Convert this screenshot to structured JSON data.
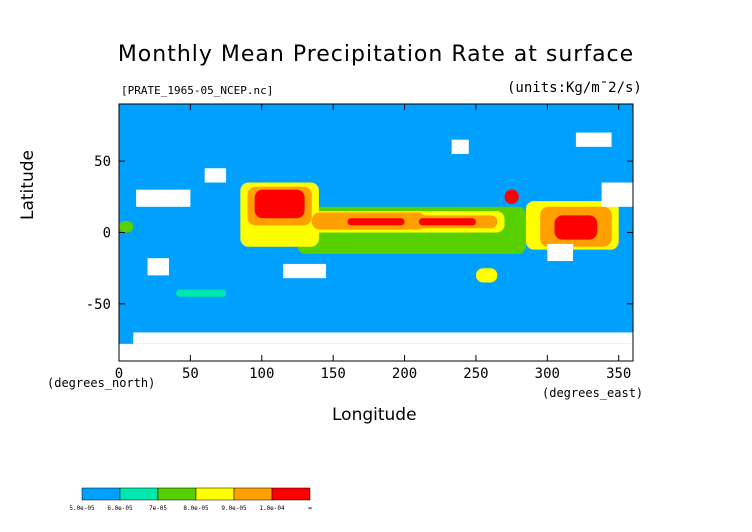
{
  "chart_data": {
    "type": "heatmap",
    "title": "Monthly Mean Precipitation Rate at surface",
    "source_file": "[PRATE_1965-05_NCEP.nc]",
    "units": "(units:Kg/m¯2/s)",
    "xlabel": "Longitude",
    "ylabel": "Latitude",
    "x_unit": "(degrees_east)",
    "y_unit": "(degrees_north)",
    "xlim": [
      0,
      360
    ],
    "ylim": [
      -90,
      90
    ],
    "x_ticks": [
      0,
      50,
      100,
      150,
      200,
      250,
      300,
      350
    ],
    "y_ticks": [
      -50,
      0,
      50
    ],
    "colorbar": {
      "labels": [
        "5.0e-05",
        "6.0e-05",
        "7e-05",
        "8.0e-05",
        "9.0e-05",
        "1.0e-04",
        "∞"
      ],
      "colors": [
        "#00a0ff",
        "#00e8b0",
        "#58d000",
        "#ffff00",
        "#ffa000",
        "#ff0000"
      ]
    },
    "regions": [
      {
        "level": 5,
        "lon": [
          160,
          200
        ],
        "lat": [
          5,
          10
        ]
      },
      {
        "level": 5,
        "lon": [
          95,
          130
        ],
        "lat": [
          10,
          30
        ]
      },
      {
        "level": 5,
        "lon": [
          305,
          335
        ],
        "lat": [
          -5,
          12
        ]
      },
      {
        "level": 5,
        "lon": [
          210,
          250
        ],
        "lat": [
          5,
          10
        ]
      },
      {
        "level": 4,
        "lon": [
          135,
          215
        ],
        "lat": [
          2,
          14
        ]
      },
      {
        "level": 4,
        "lon": [
          200,
          265
        ],
        "lat": [
          3,
          12
        ]
      },
      {
        "level": 4,
        "lon": [
          90,
          135
        ],
        "lat": [
          5,
          32
        ]
      },
      {
        "level": 4,
        "lon": [
          295,
          345
        ],
        "lat": [
          -10,
          18
        ]
      },
      {
        "level": 3,
        "lon": [
          130,
          270
        ],
        "lat": [
          0,
          15
        ]
      },
      {
        "level": 3,
        "lon": [
          85,
          140
        ],
        "lat": [
          -10,
          35
        ]
      },
      {
        "level": 3,
        "lon": [
          285,
          350
        ],
        "lat": [
          -12,
          22
        ]
      },
      {
        "level": 2,
        "lon": [
          125,
          285
        ],
        "lat": [
          -15,
          18
        ]
      },
      {
        "level": 1,
        "lon": [
          40,
          75
        ],
        "lat": [
          -45,
          -40
        ]
      },
      {
        "level": 3,
        "lon": [
          250,
          265
        ],
        "lat": [
          -35,
          -25
        ]
      },
      {
        "level": 2,
        "lon": [
          0,
          10
        ],
        "lat": [
          0,
          8
        ]
      },
      {
        "level": 5,
        "lon": [
          270,
          280
        ],
        "lat": [
          20,
          30
        ]
      }
    ],
    "grid": false
  }
}
